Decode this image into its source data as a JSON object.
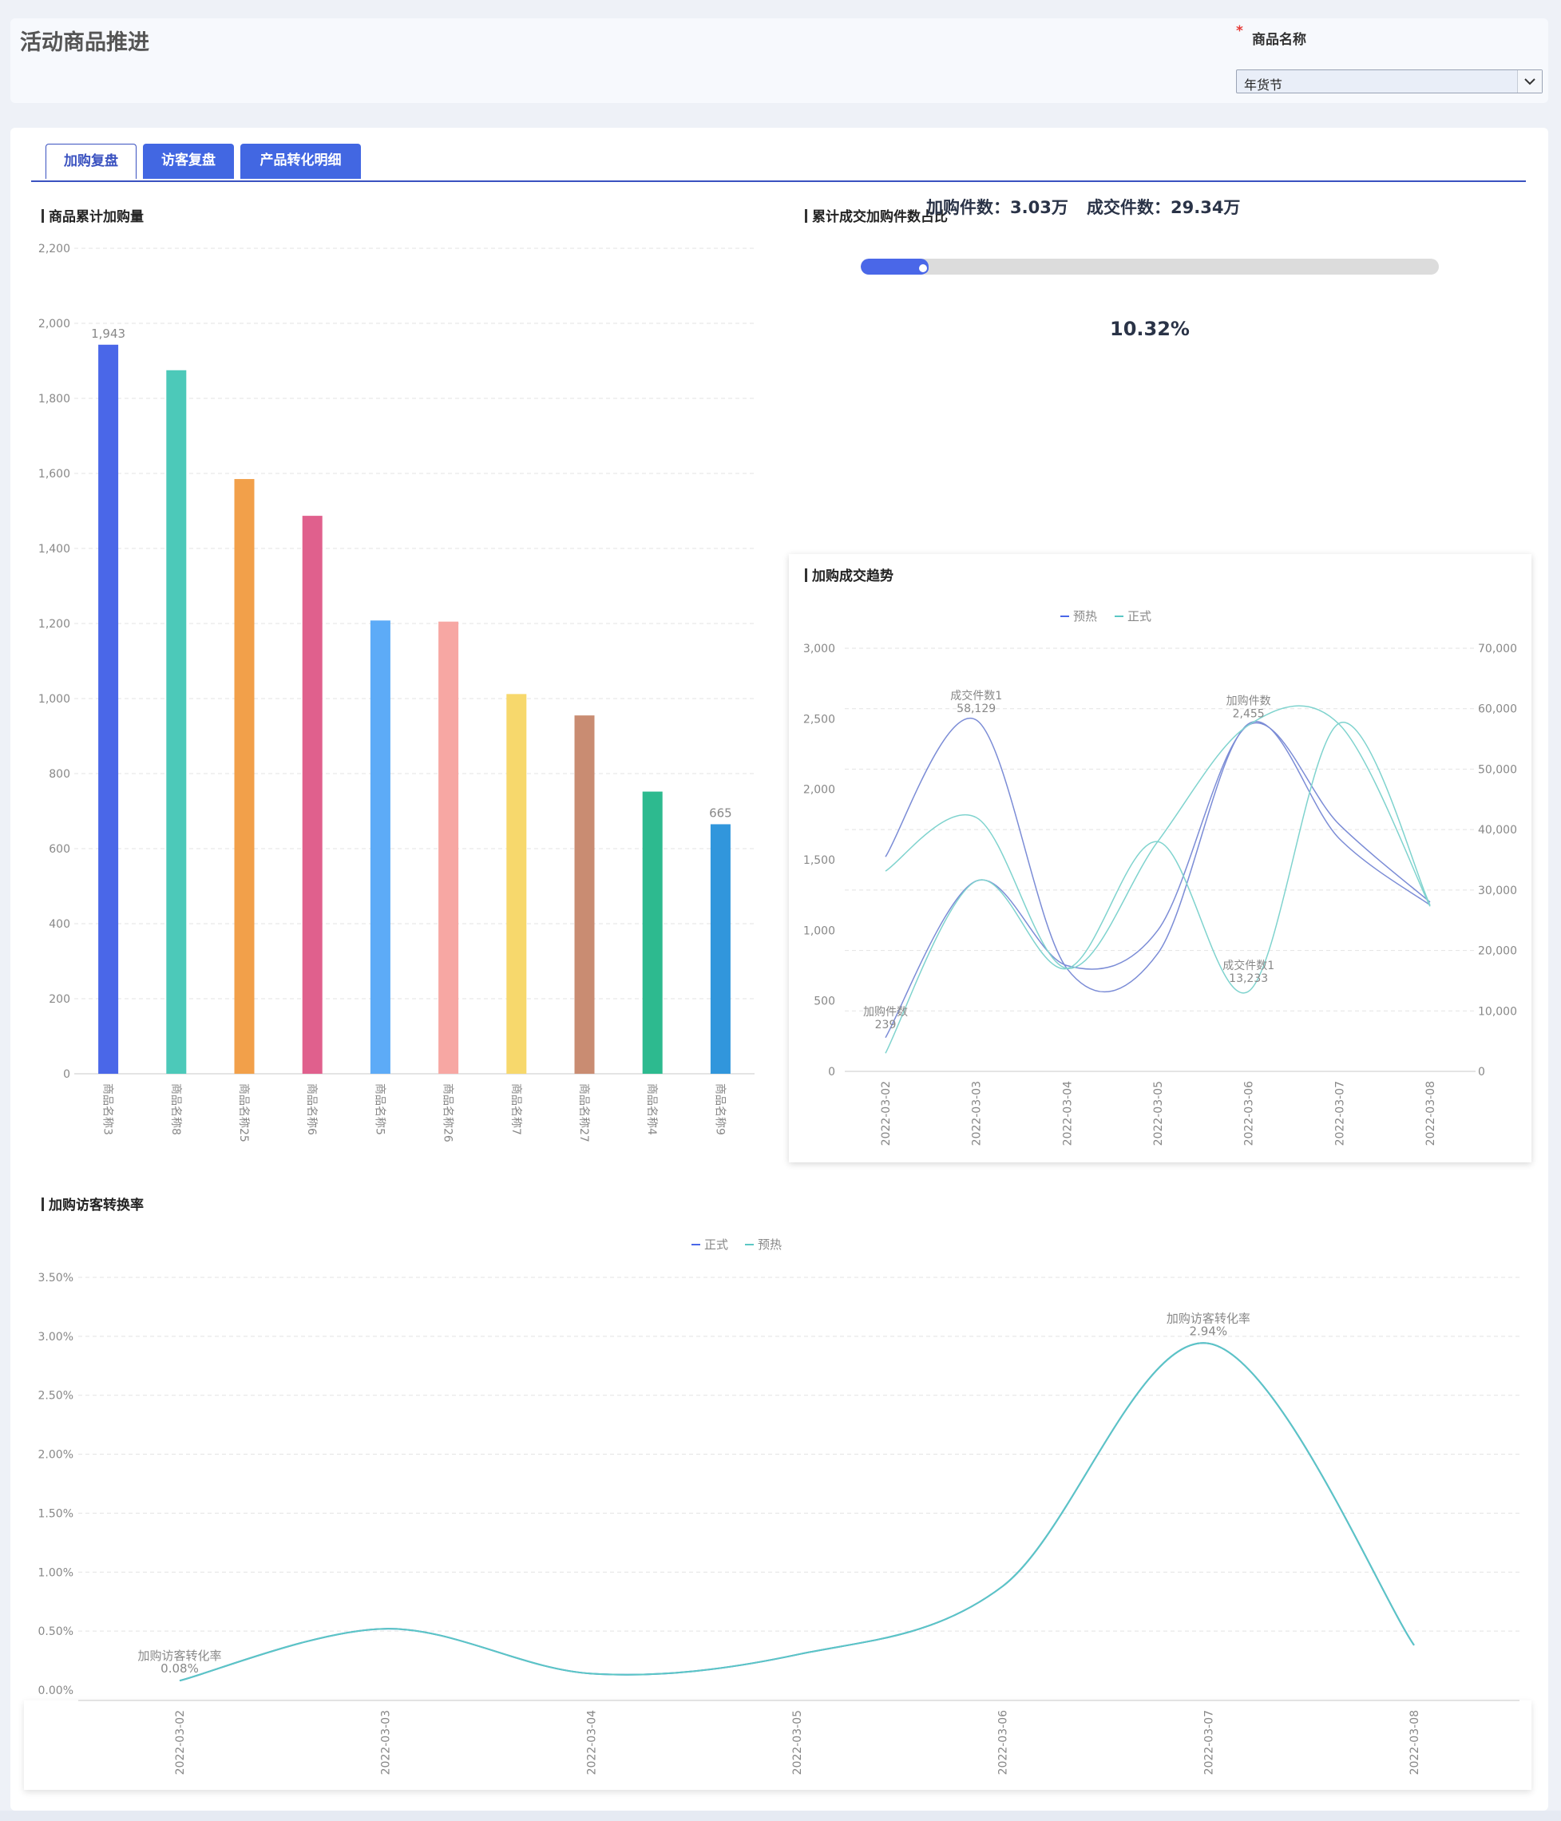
{
  "header": {
    "title": "活动商品推进",
    "filter_label": "商品名称",
    "required_mark": "*",
    "filter_value": "年货节"
  },
  "tabs": [
    {
      "label": "加购复盘",
      "active": true
    },
    {
      "label": "访客复盘",
      "active": false
    },
    {
      "label": "产品转化明细",
      "active": false
    }
  ],
  "colors": {
    "accent": "#4267e2",
    "tab_border": "#3a52c0",
    "progress": "#4a67e8",
    "series_blue": "#4a67e8",
    "series_teal": "#5bc7c4"
  },
  "bar_section": {
    "title": "商品累计加购量"
  },
  "ratio_section": {
    "title": "累计成交加购件数占比",
    "add_label": "加购件数：3.03万",
    "deal_label": "成交件数：29.34万",
    "percent_label": "10.32%",
    "progress_fraction": 0.1032
  },
  "trend_section": {
    "title": "加购成交趋势"
  },
  "rate_section": {
    "title": "加购访客转换率"
  },
  "chart_data": [
    {
      "type": "bar",
      "title": "商品累计加购量",
      "categories": [
        "商品名称3",
        "商品名称8",
        "商品名称25",
        "商品名称6",
        "商品名称5",
        "商品名称26",
        "商品名称7",
        "商品名称27",
        "商品名称4",
        "商品名称9"
      ],
      "values": [
        1943,
        1875,
        1585,
        1487,
        1208,
        1205,
        1012,
        955,
        752,
        665
      ],
      "colors": [
        "#4a67e8",
        "#4cc9b9",
        "#f2a04a",
        "#e0608d",
        "#5dabf7",
        "#f7a7a3",
        "#f7d86c",
        "#c98c72",
        "#2dba8f",
        "#3196dc"
      ],
      "ylim": [
        0,
        2200
      ],
      "yticks": [
        0,
        200,
        400,
        600,
        800,
        1000,
        1200,
        1400,
        1600,
        1800,
        2000,
        2200
      ],
      "ytick_labels": [
        "0",
        "200",
        "400",
        "600",
        "800",
        "1,000",
        "1,200",
        "1,400",
        "1,600",
        "1,800",
        "2,000",
        "2,200"
      ],
      "data_labels": [
        {
          "index": 0,
          "text": "1,943"
        },
        {
          "index": 9,
          "text": "665"
        }
      ],
      "grid": true
    },
    {
      "type": "line",
      "title": "加购成交趋势",
      "legend": [
        "预热",
        "正式"
      ],
      "legend_colors": [
        "#4a67e8",
        "#5bc7c4"
      ],
      "legend_position": "top-center",
      "x": [
        "2022-03-02",
        "2022-03-03",
        "2022-03-04",
        "2022-03-05",
        "2022-03-06",
        "2022-03-07",
        "2022-03-08"
      ],
      "left_axis": {
        "ylim": [
          0,
          3000
        ],
        "ticks": [
          "0",
          "500",
          "1,000",
          "1,500",
          "2,000",
          "2,500",
          "3,000"
        ]
      },
      "right_axis": {
        "ylim": [
          0,
          70000
        ],
        "ticks": [
          "0",
          "10,000",
          "20,000",
          "30,000",
          "40,000",
          "50,000",
          "60,000",
          "70,000"
        ]
      },
      "series": [
        {
          "color": "#7b8cd6",
          "axis": "left",
          "values": [
            239,
            1350,
            750,
            1000,
            2455,
            1750,
            1200
          ]
        },
        {
          "color": "#7b8cd6",
          "axis": "right",
          "values": [
            35500,
            58129,
            17000,
            19500,
            57500,
            38500,
            27500
          ]
        },
        {
          "color": "#7fd3ce",
          "axis": "left",
          "values": [
            1420,
            1800,
            730,
            1630,
            2455,
            2460,
            1170
          ]
        },
        {
          "color": "#7fd3ce",
          "axis": "right",
          "values": [
            3000,
            31500,
            17000,
            38000,
            13233,
            57600,
            27500
          ]
        }
      ],
      "annotations": [
        {
          "x": "2022-03-02",
          "label": "加购件数",
          "value": "239"
        },
        {
          "x": "2022-03-03",
          "label": "成交件数1",
          "value": "58,129"
        },
        {
          "x": "2022-03-06",
          "label": "加购件数",
          "value": "2,455"
        },
        {
          "x": "2022-03-06",
          "label": "成交件数1",
          "value": "13,233"
        }
      ],
      "grid": true
    },
    {
      "type": "line",
      "title": "加购访客转换率",
      "legend": [
        "正式",
        "预热"
      ],
      "legend_colors": [
        "#4a67e8",
        "#5bc7c4"
      ],
      "legend_position": "top-center",
      "x": [
        "2022-03-02",
        "2022-03-03",
        "2022-03-04",
        "2022-03-05",
        "2022-03-06",
        "2022-03-07",
        "2022-03-08"
      ],
      "ylim": [
        0,
        3.5
      ],
      "ytick_labels": [
        "0.00%",
        "0.50%",
        "1.00%",
        "1.50%",
        "2.00%",
        "2.50%",
        "3.00%",
        "3.50%"
      ],
      "series": [
        {
          "name": "正式",
          "color": "#4a67e8",
          "values": [
            0.08,
            0.52,
            0.14,
            0.3,
            0.88,
            2.94,
            0.38
          ]
        },
        {
          "name": "预热",
          "color": "#5bc7c4",
          "values": [
            0.08,
            0.52,
            0.14,
            0.3,
            0.88,
            2.94,
            0.38
          ]
        }
      ],
      "annotations": [
        {
          "x": "2022-03-02",
          "label": "加购访客转化率",
          "value": "0.08%"
        },
        {
          "x": "2022-03-07",
          "label": "加购访客转化率",
          "value": "2.94%"
        }
      ],
      "grid": true
    }
  ]
}
